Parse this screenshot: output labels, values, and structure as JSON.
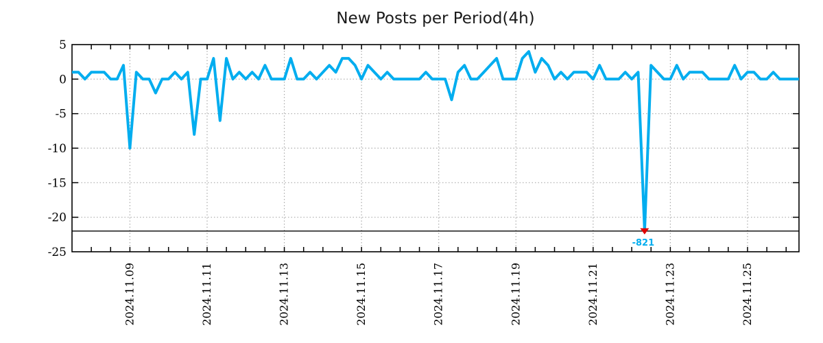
{
  "title": "New Posts per Period(4h)",
  "colors": {
    "line": "#00ADEF",
    "marker": "#E00000",
    "annotation": "#00ADEF",
    "grid": "#aaaaaa",
    "frame": "#000000",
    "clip_line": "#000000",
    "title_text": "#1a1a1a",
    "tick_text": "#000000"
  },
  "chart_data": {
    "type": "line",
    "title": "New Posts per Period(4h)",
    "xlabel": "",
    "ylabel": "",
    "x_start": "2024-11-07 12:00",
    "interval_hours": 4,
    "ylim": [
      -25,
      5
    ],
    "grid": true,
    "legend": "none",
    "clip_min": -22,
    "y_ticks": [
      "5",
      "0",
      "-5",
      "-10",
      "-15",
      "-20",
      "-25"
    ],
    "y_tick_values": [
      5,
      0,
      -5,
      -10,
      -15,
      -20,
      -25
    ],
    "x_tick_labels": [
      "2024.11.09",
      "2024.11.11",
      "2024.11.13",
      "2024.11.15",
      "2024.11.17",
      "2024.11.19",
      "2024.11.21",
      "2024.11.23",
      "2024.11.25"
    ],
    "x_tick_first_index": 9,
    "x_tick_index_step": 12,
    "minor_tick_index_step": 3,
    "values": [
      1,
      1,
      0,
      1,
      1,
      1,
      0,
      0,
      2,
      -10,
      1,
      0,
      0,
      -2,
      0,
      0,
      1,
      0,
      1,
      -8,
      0,
      0,
      3,
      -6,
      3,
      0,
      1,
      0,
      1,
      0,
      2,
      0,
      0,
      0,
      3,
      0,
      0,
      1,
      0,
      1,
      2,
      1,
      3,
      3,
      2,
      0,
      2,
      1,
      0,
      1,
      0,
      0,
      0,
      0,
      0,
      1,
      0,
      0,
      0,
      -3,
      1,
      2,
      0,
      0,
      1,
      2,
      3,
      0,
      0,
      0,
      3,
      4,
      1,
      3,
      2,
      0,
      1,
      0,
      1,
      1,
      1,
      0,
      2,
      0,
      0,
      0,
      1,
      0,
      1,
      -821,
      2,
      1,
      0,
      0,
      2,
      0,
      1,
      1,
      1,
      0,
      0,
      0,
      0,
      2,
      0,
      1,
      1,
      0,
      0,
      1,
      0,
      0,
      0,
      0
    ],
    "annotation": {
      "index": 89,
      "value": -821,
      "label": "-821"
    }
  }
}
